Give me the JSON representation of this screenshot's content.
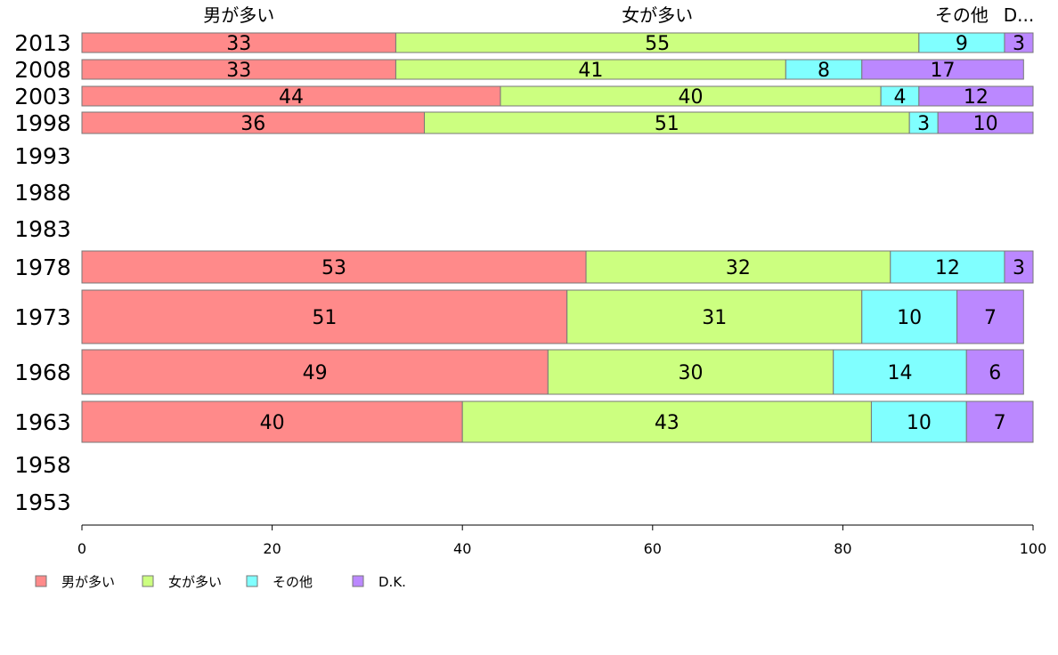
{
  "chart_data": {
    "type": "bar",
    "orientation": "horizontal",
    "stacked": true,
    "categories": [
      "2013",
      "2008",
      "2003",
      "1998",
      "1993",
      "1988",
      "1983",
      "1978",
      "1973",
      "1968",
      "1963",
      "1958",
      "1953"
    ],
    "series": [
      {
        "name": "男が多い",
        "color": "#ff8a8a",
        "values": [
          33,
          33,
          44,
          36,
          null,
          null,
          null,
          53,
          51,
          49,
          40,
          null,
          null
        ]
      },
      {
        "name": "女が多い",
        "color": "#ccff80",
        "values": [
          55,
          41,
          40,
          51,
          null,
          null,
          null,
          32,
          31,
          30,
          43,
          null,
          null
        ]
      },
      {
        "name": "その他",
        "color": "#80ffff",
        "values": [
          9,
          8,
          4,
          3,
          null,
          null,
          null,
          12,
          10,
          14,
          10,
          null,
          null
        ]
      },
      {
        "name": "D.K.",
        "color": "#bb88ff",
        "values": [
          3,
          17,
          12,
          10,
          null,
          null,
          null,
          3,
          7,
          6,
          7,
          null,
          null
        ]
      }
    ],
    "column_headers": [
      "男が多い",
      "女が多い",
      "その他",
      "D..."
    ],
    "xlim": [
      0,
      100
    ],
    "xticks": [
      0,
      20,
      40,
      60,
      80,
      100
    ],
    "legend_position": "bottom-left",
    "grid": false
  }
}
